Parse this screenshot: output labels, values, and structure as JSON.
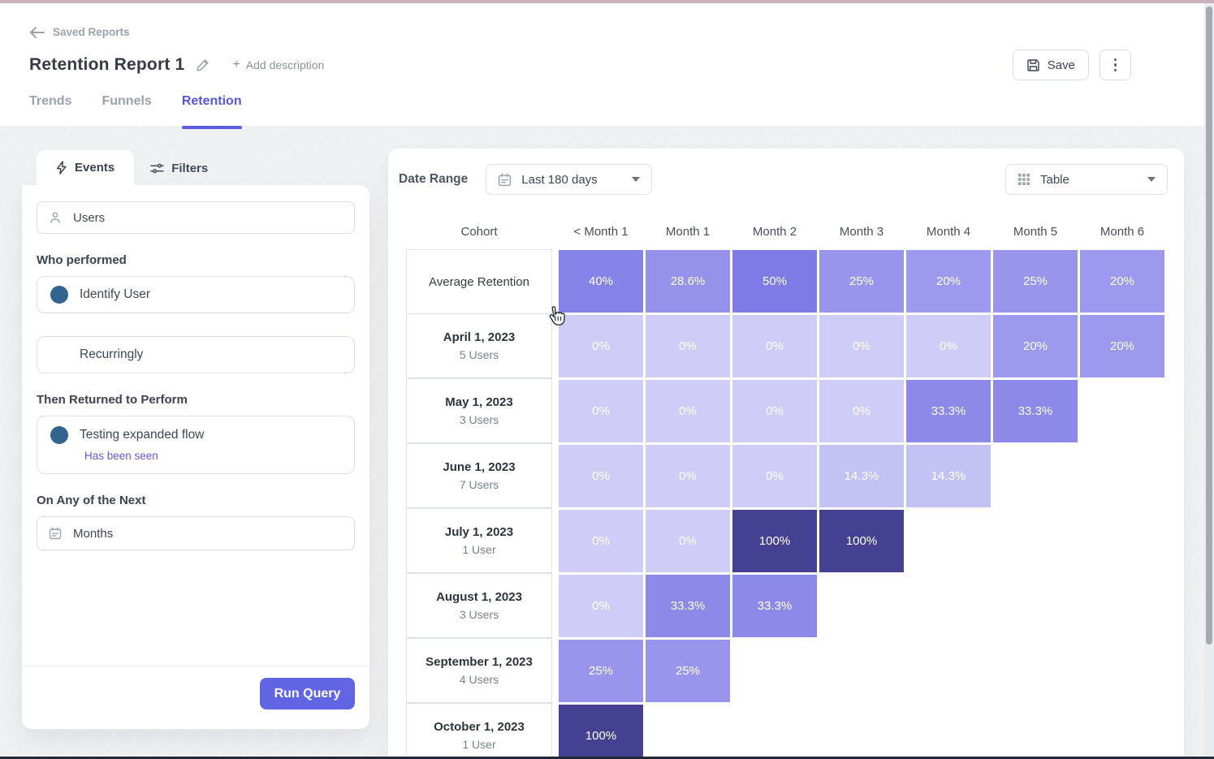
{
  "header": {
    "back_label": "Saved Reports",
    "title": "Retention Report 1",
    "add_description_label": "Add description",
    "save_label": "Save",
    "tabs": [
      {
        "label": "Trends",
        "active": false
      },
      {
        "label": "Funnels",
        "active": false
      },
      {
        "label": "Retention",
        "active": true
      }
    ]
  },
  "query_panel": {
    "events_tab": "Events",
    "filters_tab": "Filters",
    "users_field": "Users",
    "who_performed_label": "Who performed",
    "performed_event": "Identify User",
    "frequency_value": "Recurringly",
    "returned_label": "Then Returned to Perform",
    "returned_event": "Testing expanded flow",
    "returned_condition": "Has been seen",
    "next_label": "On Any of the Next",
    "interval_field": "Months",
    "run_query_label": "Run Query",
    "event_dot_color": "#31648f"
  },
  "toolbar": {
    "date_range_label": "Date Range",
    "date_range_value": "Last 180 days",
    "view_value": "Table"
  },
  "chart_data": {
    "type": "table",
    "title": "Retention cohort table",
    "columns": [
      "Cohort",
      "< Month 1",
      "Month 1",
      "Month 2",
      "Month 3",
      "Month 4",
      "Month 5",
      "Month 6"
    ],
    "rows": [
      {
        "cohort": "Average Retention",
        "users": "",
        "values": [
          "40%",
          "28.6%",
          "50%",
          "25%",
          "20%",
          "25%",
          "20%"
        ]
      },
      {
        "cohort": "April 1, 2023",
        "users": "5 Users",
        "values": [
          "0%",
          "0%",
          "0%",
          "0%",
          "0%",
          "20%",
          "20%"
        ]
      },
      {
        "cohort": "May 1, 2023",
        "users": "3 Users",
        "values": [
          "0%",
          "0%",
          "0%",
          "0%",
          "33.3%",
          "33.3%"
        ]
      },
      {
        "cohort": "June 1, 2023",
        "users": "7 Users",
        "values": [
          "0%",
          "0%",
          "0%",
          "14.3%",
          "14.3%"
        ]
      },
      {
        "cohort": "July 1, 2023",
        "users": "1 User",
        "values": [
          "0%",
          "0%",
          "100%",
          "100%"
        ]
      },
      {
        "cohort": "August 1, 2023",
        "users": "3 Users",
        "values": [
          "0%",
          "33.3%",
          "33.3%"
        ]
      },
      {
        "cohort": "September 1, 2023",
        "users": "4 Users",
        "values": [
          "25%",
          "25%"
        ]
      },
      {
        "cohort": "October 1, 2023",
        "users": "1 User",
        "values": [
          "100%"
        ]
      }
    ],
    "value_colors": {
      "0%": "#cfcdf8",
      "14.3%": "#c4c1f5",
      "20%": "#9d99ee",
      "25%": "#9995ed",
      "28.6%": "#9692ec",
      "33.3%": "#8d89e9",
      "40%": "#8583e8",
      "50%": "#7e7be6",
      "100%": "#454192"
    }
  }
}
